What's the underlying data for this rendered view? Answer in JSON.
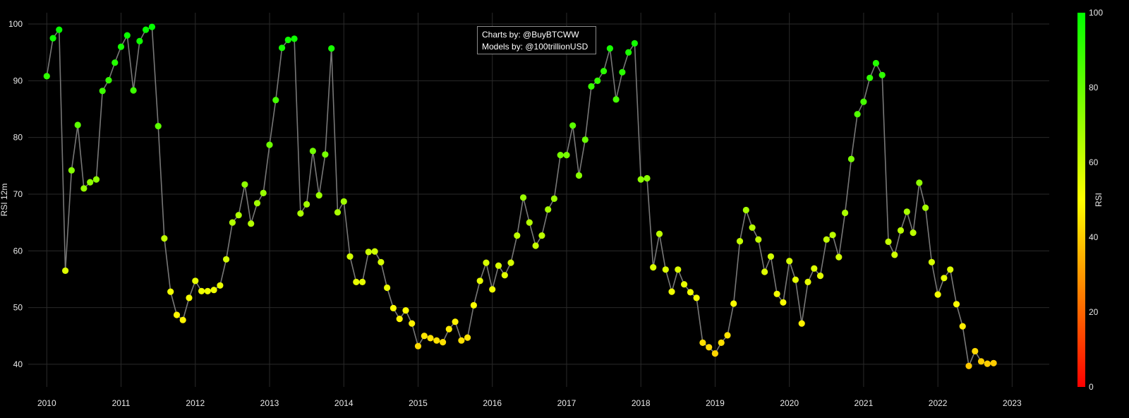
{
  "annotation": {
    "charts_by": "Charts by: @BuyBTCWW",
    "models_by": "Models by: @100trillionUSD"
  },
  "colorbar": {
    "title": "RSI",
    "ticks": [
      "0",
      "20",
      "40",
      "60",
      "80",
      "100"
    ],
    "colorscale": [
      "#ff0000",
      "#ffff00",
      "#00ff00"
    ]
  },
  "chart_data": {
    "type": "scatter",
    "mode": "lines+markers",
    "title": "",
    "xlabel": "",
    "ylabel": "RSI 12m",
    "xlim": [
      "2009-10-01",
      "2023-07-01"
    ],
    "ylim": [
      36,
      102
    ],
    "x_ticks": [
      "2010",
      "2011",
      "2012",
      "2013",
      "2014",
      "2015",
      "2016",
      "2017",
      "2018",
      "2019",
      "2020",
      "2021",
      "2022",
      "2023"
    ],
    "y_ticks": [
      "40",
      "50",
      "60",
      "70",
      "80",
      "90",
      "100"
    ],
    "grid": true,
    "line_color": "#777777",
    "start": "2010-01",
    "frequency": "monthly",
    "values": [
      90.8,
      97.5,
      99.0,
      56.5,
      74.2,
      82.2,
      71.0,
      72.1,
      72.6,
      88.2,
      90.1,
      93.2,
      96.0,
      98.0,
      88.3,
      97.0,
      99.0,
      99.5,
      82.0,
      62.2,
      52.8,
      48.7,
      47.8,
      51.7,
      54.7,
      52.9,
      52.9,
      53.1,
      53.9,
      58.5,
      65.0,
      66.3,
      71.7,
      64.8,
      68.4,
      70.2,
      78.7,
      86.6,
      95.8,
      97.2,
      97.4,
      66.6,
      68.2,
      77.6,
      69.8,
      77.0,
      95.7,
      66.8,
      68.7,
      59.0,
      54.5,
      54.5,
      59.8,
      59.9,
      58.0,
      53.5,
      49.9,
      48.0,
      49.5,
      47.2,
      43.2,
      45.0,
      44.6,
      44.2,
      43.9,
      46.2,
      47.5,
      44.2,
      44.7,
      50.4,
      54.7,
      57.9,
      53.2,
      57.4,
      55.7,
      57.9,
      62.7,
      69.4,
      65.0,
      60.9,
      62.7,
      67.3,
      69.2,
      76.9,
      76.9,
      82.1,
      73.3,
      79.6,
      89.0,
      90.0,
      91.7,
      95.7,
      86.7,
      91.5,
      95.0,
      96.6,
      72.6,
      72.8,
      57.1,
      63.0,
      56.7,
      52.8,
      56.7,
      54.1,
      52.7,
      51.7,
      43.8,
      43.0,
      41.9,
      43.8,
      45.1,
      50.7,
      61.7,
      67.2,
      64.1,
      62.0,
      56.3,
      59.0,
      52.4,
      50.9,
      58.2,
      54.9,
      47.2,
      54.5,
      56.9,
      55.6,
      62.0,
      62.8,
      58.9,
      66.7,
      76.2,
      84.1,
      86.3,
      90.5,
      93.1,
      91.0,
      61.6,
      59.3,
      63.6,
      66.9,
      63.2,
      72.0,
      67.6,
      58.0,
      52.3,
      55.2,
      56.7,
      50.6,
      46.7,
      39.7,
      42.3,
      40.5,
      40.1,
      40.2
    ]
  }
}
